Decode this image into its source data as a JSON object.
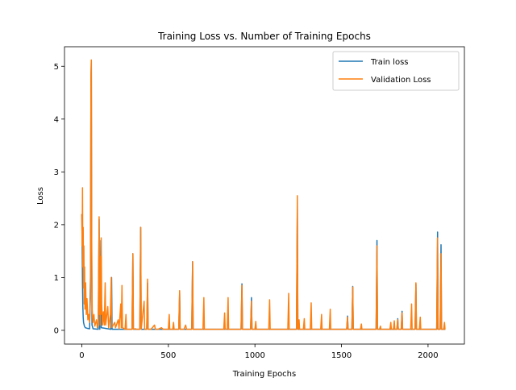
{
  "chart_data": {
    "type": "line",
    "title": "Training Loss vs. Number of Training Epochs",
    "xlabel": "Training Epochs",
    "ylabel": "Loss",
    "xlim": [
      -100,
      2210
    ],
    "ylim": [
      -0.26,
      5.37
    ],
    "xticks": [
      0,
      500,
      1000,
      1500,
      2000
    ],
    "yticks": [
      0,
      1,
      2,
      3,
      4,
      5
    ],
    "grid": false,
    "legend_position": "top-right",
    "series": [
      {
        "name": "Train loss",
        "color": "#1f77b4",
        "points": [
          [
            0,
            2.2
          ],
          [
            2,
            1.7
          ],
          [
            4,
            0.9
          ],
          [
            6,
            0.45
          ],
          [
            8,
            0.25
          ],
          [
            10,
            0.15
          ],
          [
            15,
            0.08
          ],
          [
            20,
            0.05
          ],
          [
            30,
            0.04
          ],
          [
            45,
            0.03
          ],
          [
            50,
            1.0
          ],
          [
            53,
            4.8
          ],
          [
            55,
            5.1
          ],
          [
            57,
            1.5
          ],
          [
            59,
            0.1
          ],
          [
            65,
            0.03
          ],
          [
            95,
            0.02
          ],
          [
            100,
            2.1
          ],
          [
            102,
            0.4
          ],
          [
            104,
            0.02
          ],
          [
            110,
            1.7
          ],
          [
            112,
            0.05
          ],
          [
            168,
            0.02
          ],
          [
            172,
            1.0
          ],
          [
            175,
            0.02
          ],
          [
            290,
            0.02
          ],
          [
            295,
            1.45
          ],
          [
            298,
            0.02
          ],
          [
            335,
            0.02
          ],
          [
            340,
            1.95
          ],
          [
            343,
            0.02
          ],
          [
            375,
            0.02
          ],
          [
            380,
            0.9
          ],
          [
            383,
            0.02
          ],
          [
            560,
            0.02
          ],
          [
            565,
            0.7
          ],
          [
            568,
            0.02
          ],
          [
            635,
            0.02
          ],
          [
            640,
            1.3
          ],
          [
            643,
            0.02
          ],
          [
            920,
            0.02
          ],
          [
            925,
            0.88
          ],
          [
            928,
            0.02
          ],
          [
            975,
            0.02
          ],
          [
            980,
            0.62
          ],
          [
            983,
            0.02
          ],
          [
            1240,
            0.02
          ],
          [
            1245,
            2.3
          ],
          [
            1248,
            0.02
          ],
          [
            1530,
            0.02
          ],
          [
            1535,
            0.27
          ],
          [
            1538,
            0.02
          ],
          [
            1560,
            0.02
          ],
          [
            1565,
            0.83
          ],
          [
            1568,
            0.02
          ],
          [
            1700,
            0.02
          ],
          [
            1705,
            1.7
          ],
          [
            1708,
            0.02
          ],
          [
            1820,
            0.02
          ],
          [
            1825,
            0.22
          ],
          [
            1828,
            0.02
          ],
          [
            1845,
            0.02
          ],
          [
            1850,
            0.36
          ],
          [
            1853,
            0.02
          ],
          [
            1925,
            0.02
          ],
          [
            1930,
            0.88
          ],
          [
            1933,
            0.02
          ],
          [
            2050,
            0.02
          ],
          [
            2055,
            1.86
          ],
          [
            2058,
            0.02
          ],
          [
            2070,
            0.02
          ],
          [
            2075,
            1.62
          ],
          [
            2078,
            0.02
          ],
          [
            2100,
            0.02
          ]
        ]
      },
      {
        "name": "Validation Loss",
        "color": "#ff7f0e",
        "points": [
          [
            0,
            2.2
          ],
          [
            2,
            1.6
          ],
          [
            4,
            2.7
          ],
          [
            6,
            1.2
          ],
          [
            8,
            1.95
          ],
          [
            10,
            0.8
          ],
          [
            12,
            1.6
          ],
          [
            14,
            0.5
          ],
          [
            16,
            1.2
          ],
          [
            18,
            0.4
          ],
          [
            22,
            0.9
          ],
          [
            26,
            0.3
          ],
          [
            30,
            0.6
          ],
          [
            35,
            0.2
          ],
          [
            40,
            0.3
          ],
          [
            45,
            0.15
          ],
          [
            50,
            0.6
          ],
          [
            53,
            4.8
          ],
          [
            55,
            5.12
          ],
          [
            57,
            1.8
          ],
          [
            60,
            0.4
          ],
          [
            64,
            0.15
          ],
          [
            70,
            0.3
          ],
          [
            75,
            0.08
          ],
          [
            85,
            0.2
          ],
          [
            90,
            0.05
          ],
          [
            95,
            0.1
          ],
          [
            100,
            2.15
          ],
          [
            102,
            0.3
          ],
          [
            104,
            0.9
          ],
          [
            106,
            0.1
          ],
          [
            108,
            1.4
          ],
          [
            110,
            0.3
          ],
          [
            112,
            1.75
          ],
          [
            115,
            0.5
          ],
          [
            120,
            0.1
          ],
          [
            125,
            0.35
          ],
          [
            130,
            0.1
          ],
          [
            135,
            0.9
          ],
          [
            138,
            0.1
          ],
          [
            150,
            0.45
          ],
          [
            155,
            0.05
          ],
          [
            165,
            0.3
          ],
          [
            170,
            1.0
          ],
          [
            173,
            0.05
          ],
          [
            190,
            0.15
          ],
          [
            195,
            0.05
          ],
          [
            210,
            0.2
          ],
          [
            215,
            0.03
          ],
          [
            225,
            0.5
          ],
          [
            228,
            0.05
          ],
          [
            232,
            0.85
          ],
          [
            235,
            0.05
          ],
          [
            250,
            0.02
          ],
          [
            255,
            0.3
          ],
          [
            258,
            0.02
          ],
          [
            290,
            0.02
          ],
          [
            295,
            1.45
          ],
          [
            298,
            0.02
          ],
          [
            310,
            0.03
          ],
          [
            315,
            0.02
          ],
          [
            335,
            0.02
          ],
          [
            340,
            1.95
          ],
          [
            343,
            0.02
          ],
          [
            360,
            0.55
          ],
          [
            363,
            0.02
          ],
          [
            375,
            0.02
          ],
          [
            380,
            0.97
          ],
          [
            383,
            0.02
          ],
          [
            400,
            0.02
          ],
          [
            420,
            0.1
          ],
          [
            425,
            0.02
          ],
          [
            440,
            0.02
          ],
          [
            460,
            0.05
          ],
          [
            470,
            0.02
          ],
          [
            500,
            0.02
          ],
          [
            505,
            0.3
          ],
          [
            508,
            0.02
          ],
          [
            525,
            0.02
          ],
          [
            530,
            0.15
          ],
          [
            533,
            0.02
          ],
          [
            560,
            0.02
          ],
          [
            565,
            0.75
          ],
          [
            568,
            0.02
          ],
          [
            590,
            0.02
          ],
          [
            600,
            0.1
          ],
          [
            605,
            0.02
          ],
          [
            635,
            0.02
          ],
          [
            640,
            1.3
          ],
          [
            643,
            0.02
          ],
          [
            700,
            0.02
          ],
          [
            705,
            0.62
          ],
          [
            708,
            0.02
          ],
          [
            820,
            0.02
          ],
          [
            825,
            0.33
          ],
          [
            828,
            0.02
          ],
          [
            840,
            0.02
          ],
          [
            845,
            0.62
          ],
          [
            848,
            0.02
          ],
          [
            920,
            0.02
          ],
          [
            925,
            0.85
          ],
          [
            928,
            0.02
          ],
          [
            975,
            0.02
          ],
          [
            980,
            0.55
          ],
          [
            983,
            0.02
          ],
          [
            1000,
            0.02
          ],
          [
            1005,
            0.17
          ],
          [
            1008,
            0.02
          ],
          [
            1080,
            0.02
          ],
          [
            1085,
            0.58
          ],
          [
            1088,
            0.02
          ],
          [
            1190,
            0.02
          ],
          [
            1195,
            0.7
          ],
          [
            1198,
            0.02
          ],
          [
            1240,
            0.02
          ],
          [
            1245,
            2.55
          ],
          [
            1248,
            0.02
          ],
          [
            1250,
            0.02
          ],
          [
            1255,
            0.2
          ],
          [
            1258,
            0.02
          ],
          [
            1280,
            0.02
          ],
          [
            1285,
            0.22
          ],
          [
            1288,
            0.02
          ],
          [
            1320,
            0.02
          ],
          [
            1325,
            0.52
          ],
          [
            1328,
            0.02
          ],
          [
            1380,
            0.02
          ],
          [
            1385,
            0.3
          ],
          [
            1388,
            0.02
          ],
          [
            1430,
            0.02
          ],
          [
            1435,
            0.4
          ],
          [
            1438,
            0.02
          ],
          [
            1530,
            0.02
          ],
          [
            1535,
            0.25
          ],
          [
            1538,
            0.02
          ],
          [
            1560,
            0.02
          ],
          [
            1565,
            0.82
          ],
          [
            1568,
            0.02
          ],
          [
            1610,
            0.02
          ],
          [
            1615,
            0.12
          ],
          [
            1618,
            0.02
          ],
          [
            1700,
            0.02
          ],
          [
            1705,
            1.6
          ],
          [
            1708,
            0.02
          ],
          [
            1720,
            0.02
          ],
          [
            1725,
            0.08
          ],
          [
            1728,
            0.02
          ],
          [
            1780,
            0.02
          ],
          [
            1785,
            0.15
          ],
          [
            1788,
            0.02
          ],
          [
            1800,
            0.02
          ],
          [
            1805,
            0.18
          ],
          [
            1808,
            0.02
          ],
          [
            1820,
            0.02
          ],
          [
            1825,
            0.2
          ],
          [
            1828,
            0.02
          ],
          [
            1845,
            0.02
          ],
          [
            1850,
            0.33
          ],
          [
            1853,
            0.02
          ],
          [
            1900,
            0.02
          ],
          [
            1905,
            0.5
          ],
          [
            1908,
            0.02
          ],
          [
            1925,
            0.02
          ],
          [
            1930,
            0.9
          ],
          [
            1933,
            0.02
          ],
          [
            1950,
            0.02
          ],
          [
            1955,
            0.25
          ],
          [
            1958,
            0.02
          ],
          [
            2050,
            0.02
          ],
          [
            2055,
            1.75
          ],
          [
            2058,
            0.02
          ],
          [
            2070,
            0.02
          ],
          [
            2075,
            1.45
          ],
          [
            2078,
            0.02
          ],
          [
            2090,
            0.02
          ],
          [
            2095,
            0.15
          ],
          [
            2098,
            0.02
          ],
          [
            2100,
            0.02
          ]
        ]
      }
    ]
  }
}
